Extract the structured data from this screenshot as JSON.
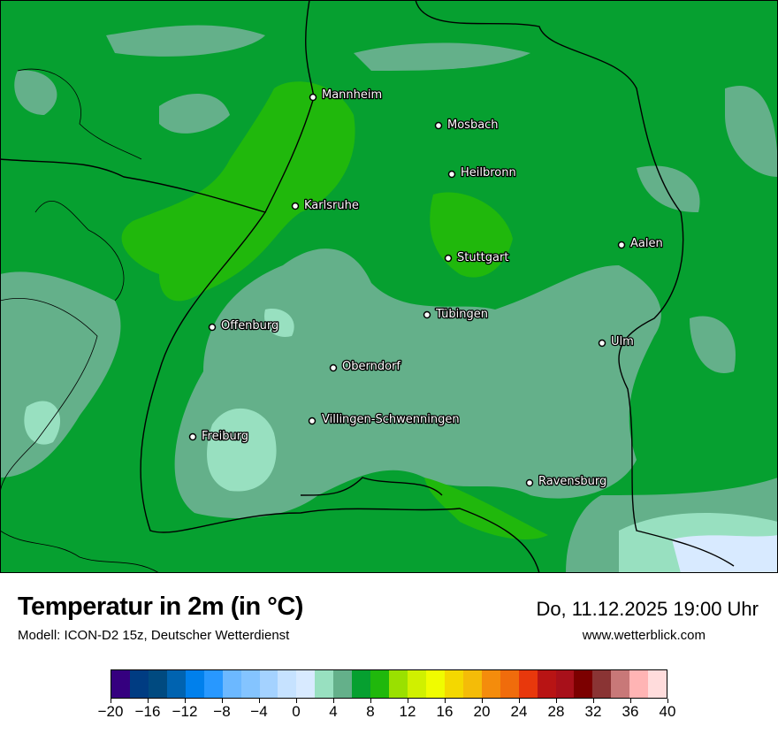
{
  "header": {
    "title": "Temperatur in 2m (in °C)",
    "model": "Modell: ICON-D2 15z, Deutscher Wetterdienst",
    "datetime": "Do, 11.12.2025 19:00 Uhr",
    "website": "www.wetterblick.com"
  },
  "colorbar": {
    "min": -20,
    "max": 40,
    "step": 2,
    "tick_labels": [
      "−20",
      "−16",
      "−12",
      "−8",
      "−4",
      "0",
      "4",
      "8",
      "12",
      "16",
      "20",
      "24",
      "28",
      "32",
      "36",
      "40"
    ],
    "colors": [
      "#35007f",
      "#003c82",
      "#004a80",
      "#0063b0",
      "#0080ec",
      "#2898ff",
      "#6cb8ff",
      "#84c4ff",
      "#a4d2ff",
      "#c6e2ff",
      "#d8eaff",
      "#98e0c0",
      "#64b08a",
      "#06a030",
      "#20b80c",
      "#9ae000",
      "#d0f000",
      "#f0fc00",
      "#f4d800",
      "#f4bc08",
      "#f48c0c",
      "#f06c0c",
      "#e8380c",
      "#b81414",
      "#a8101a",
      "#7c0000",
      "#8a3434",
      "#c87878",
      "#ffb4b4",
      "#ffdcdc"
    ]
  },
  "map": {
    "cities": [
      "Mannheim",
      "Mosbach",
      "Heilbronn",
      "Karlsruhe",
      "Aalen",
      "Stuttgart",
      "Tübingen",
      "Offenburg",
      "Ulm",
      "Oberndorf",
      "Villingen-Schwenningen",
      "Freiburg",
      "Ravensburg"
    ]
  }
}
